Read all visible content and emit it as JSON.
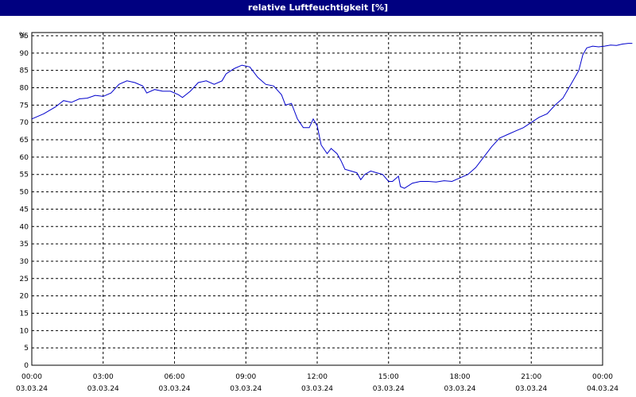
{
  "window": {
    "title": "relative Luftfeuchtigkeit [%]"
  },
  "colors": {
    "title_bg": "#000080",
    "title_fg": "#ffffff",
    "series": "#0000cc",
    "grid": "#000000"
  },
  "chart_data": {
    "type": "line",
    "title": "relative Luftfeuchtigkeit [%]",
    "ylabel": "%",
    "ylim": [
      0,
      95
    ],
    "yticks": [
      0,
      5,
      10,
      15,
      20,
      25,
      30,
      35,
      40,
      45,
      50,
      55,
      60,
      65,
      70,
      75,
      80,
      85,
      90,
      95
    ],
    "xlim": [
      "03.03.24 00:00",
      "04.03.24 00:00"
    ],
    "xticks": [
      {
        "time": "00:00",
        "date": "03.03.24"
      },
      {
        "time": "03:00",
        "date": "03.03.24"
      },
      {
        "time": "06:00",
        "date": "03.03.24"
      },
      {
        "time": "09:00",
        "date": "03.03.24"
      },
      {
        "time": "12:00",
        "date": "03.03.24"
      },
      {
        "time": "15:00",
        "date": "03.03.24"
      },
      {
        "time": "18:00",
        "date": "03.03.24"
      },
      {
        "time": "21:00",
        "date": "03.03.24"
      },
      {
        "time": "00:00",
        "date": "04.03.24"
      }
    ],
    "grid": true,
    "series": [
      {
        "values": [
          [
            "00:00",
            71
          ],
          [
            "00:30",
            72.5
          ],
          [
            "01:00",
            74.5
          ],
          [
            "01:20",
            76.3
          ],
          [
            "01:40",
            75.8
          ],
          [
            "02:00",
            76.8
          ],
          [
            "02:20",
            77
          ],
          [
            "02:40",
            77.8
          ],
          [
            "03:00",
            77.5
          ],
          [
            "03:20",
            78.5
          ],
          [
            "03:40",
            81
          ],
          [
            "04:00",
            82
          ],
          [
            "04:20",
            81.5
          ],
          [
            "04:40",
            80.5
          ],
          [
            "04:50",
            78.5
          ],
          [
            "05:10",
            79.5
          ],
          [
            "05:30",
            79
          ],
          [
            "05:50",
            79
          ],
          [
            "06:10",
            78
          ],
          [
            "06:20",
            77.2
          ],
          [
            "06:40",
            79
          ],
          [
            "07:00",
            81.5
          ],
          [
            "07:20",
            82
          ],
          [
            "07:40",
            81
          ],
          [
            "08:00",
            82
          ],
          [
            "08:10",
            84
          ],
          [
            "08:30",
            85.5
          ],
          [
            "08:50",
            86.5
          ],
          [
            "09:10",
            86
          ],
          [
            "09:30",
            83
          ],
          [
            "09:50",
            81
          ],
          [
            "10:10",
            80.5
          ],
          [
            "10:30",
            78
          ],
          [
            "10:40",
            75
          ],
          [
            "10:55",
            75.5
          ],
          [
            "11:10",
            71
          ],
          [
            "11:25",
            68.5
          ],
          [
            "11:40",
            68.5
          ],
          [
            "11:50",
            71
          ],
          [
            "12:00",
            69
          ],
          [
            "12:10",
            63.5
          ],
          [
            "12:25",
            61
          ],
          [
            "12:35",
            62.5
          ],
          [
            "12:50",
            61
          ],
          [
            "13:00",
            59
          ],
          [
            "13:10",
            56.5
          ],
          [
            "13:25",
            56
          ],
          [
            "13:40",
            55.5
          ],
          [
            "13:50",
            53.5
          ],
          [
            "14:00",
            55
          ],
          [
            "14:15",
            56
          ],
          [
            "14:30",
            55.5
          ],
          [
            "14:45",
            55
          ],
          [
            "15:00",
            53
          ],
          [
            "15:10",
            53
          ],
          [
            "15:25",
            54.5
          ],
          [
            "15:30",
            51.5
          ],
          [
            "15:40",
            51
          ],
          [
            "16:00",
            52.5
          ],
          [
            "16:20",
            53
          ],
          [
            "16:40",
            53
          ],
          [
            "17:00",
            52.8
          ],
          [
            "17:20",
            53.2
          ],
          [
            "17:40",
            53
          ],
          [
            "18:00",
            54
          ],
          [
            "18:20",
            55
          ],
          [
            "18:40",
            57
          ],
          [
            "19:00",
            60
          ],
          [
            "19:20",
            63
          ],
          [
            "19:40",
            65.5
          ],
          [
            "20:00",
            66.5
          ],
          [
            "20:20",
            67.5
          ],
          [
            "20:40",
            68.5
          ],
          [
            "21:00",
            70
          ],
          [
            "21:20",
            71.5
          ],
          [
            "21:40",
            72.5
          ],
          [
            "22:00",
            75
          ],
          [
            "22:20",
            77
          ],
          [
            "22:40",
            81
          ],
          [
            "23:00",
            85
          ],
          [
            "23:10",
            89.5
          ],
          [
            "23:20",
            91.5
          ],
          [
            "23:35",
            92
          ],
          [
            "23:50",
            91.8
          ],
          [
            "00:05",
            92
          ],
          [
            "00:20",
            92.3
          ],
          [
            "00:35",
            92.2
          ],
          [
            "00:50",
            92.6
          ],
          [
            "01:05",
            92.8
          ],
          [
            "01:15",
            92.8
          ]
        ]
      }
    ]
  }
}
